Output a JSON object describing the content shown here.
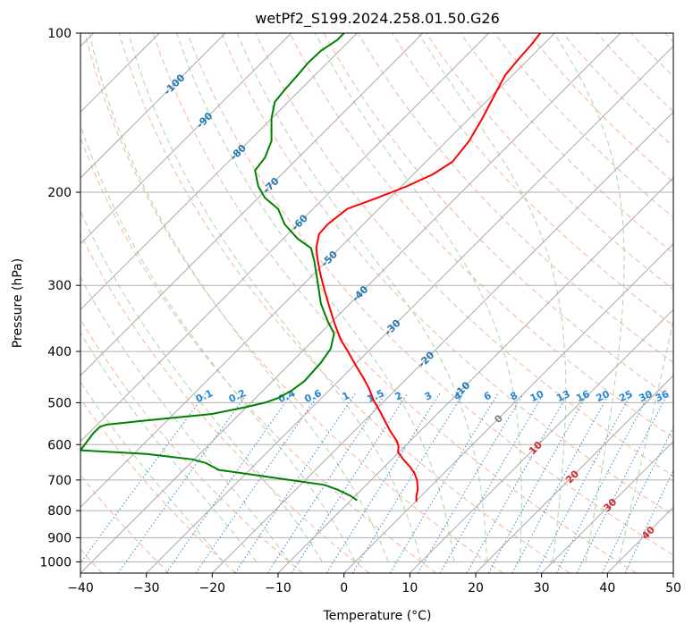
{
  "chart_data": {
    "type": "line",
    "title": "wetPf2_S199.2024.258.01.50.G26",
    "xlabel": "Temperature (°C)",
    "ylabel": "Pressure (hPa)",
    "xlim": [
      -40,
      50
    ],
    "ylim": [
      1050,
      100
    ],
    "y_scale": "log",
    "grid": true,
    "x_ticks": [
      -40,
      -30,
      -20,
      -10,
      0,
      10,
      20,
      30,
      40,
      50
    ],
    "y_ticks": [
      100,
      200,
      300,
      400,
      500,
      600,
      700,
      800,
      900,
      1000
    ],
    "isotherm_labels": [
      {
        "text": "-100",
        "t": -100,
        "p": 125
      },
      {
        "text": "-90",
        "t": -90,
        "p": 146
      },
      {
        "text": "-80",
        "t": -80,
        "p": 168
      },
      {
        "text": "-70",
        "t": -70,
        "p": 194
      },
      {
        "text": "-60",
        "t": -60,
        "p": 228
      },
      {
        "text": "-50",
        "t": -50,
        "p": 267
      },
      {
        "text": "-40",
        "t": -40,
        "p": 311
      },
      {
        "text": "-30",
        "t": -30,
        "p": 360
      },
      {
        "text": "-20",
        "t": -20,
        "p": 414
      },
      {
        "text": "-10",
        "t": -10,
        "p": 472
      },
      {
        "text": "0",
        "t": 0,
        "p": 536
      },
      {
        "text": "10",
        "t": 10,
        "p": 608
      },
      {
        "text": "20",
        "t": 20,
        "p": 690
      },
      {
        "text": "30",
        "t": 30,
        "p": 780
      },
      {
        "text": "40",
        "t": 40,
        "p": 880
      }
    ],
    "mixing_ratio_labels": [
      "0.1",
      "0.2",
      "0.4",
      "0.6",
      "1",
      "1.5",
      "2",
      "3",
      "4",
      "6",
      "8",
      "10",
      "13",
      "16",
      "20",
      "25",
      "30",
      "36"
    ],
    "mixing_ratio_label_x": [
      -21,
      -16,
      -8.5,
      -4.5,
      0.5,
      5,
      8.5,
      13,
      17.5,
      22,
      26,
      29.5,
      33.5,
      36.5,
      39.5,
      43,
      46,
      48.5
    ],
    "series": [
      {
        "name": "",
        "color": "#ff0000",
        "t": [
          11,
          11,
          11.2,
          11.1,
          10.7,
          10,
          9,
          8.2,
          8.3,
          8,
          7,
          6.5,
          5.5,
          4.5,
          3.8,
          3,
          1.8,
          0.6,
          -0.5,
          -1.4,
          -2.2,
          -3,
          -3.6,
          -4,
          -4.2,
          -3.8,
          -2.5,
          0.5,
          5,
          9.5,
          13.5,
          16.5,
          19,
          21,
          23,
          24.5,
          26.5,
          28.5,
          29.8
        ],
        "p": [
          770,
          750,
          730,
          700,
          680,
          660,
          640,
          620,
          605,
          590,
          565,
          550,
          520,
          495,
          470,
          450,
          425,
          400,
          380,
          355,
          330,
          305,
          285,
          268,
          255,
          240,
          230,
          215,
          205,
          195,
          185,
          175,
          160,
          145,
          130,
          120,
          112,
          105,
          100
        ]
      },
      {
        "name": "",
        "color": "#008000",
        "t": [
          2,
          1,
          -1,
          -3,
          -10,
          -19,
          -21,
          -23,
          -30,
          -40,
          -38,
          -37,
          -36,
          -30,
          -20,
          -15,
          -12,
          -10,
          -8,
          -6,
          -3.5,
          -2,
          -1.5,
          -2.5,
          -3.5,
          -4,
          -4.5,
          -5,
          -7,
          -9,
          -10,
          -12,
          -13,
          -13.5,
          -12,
          -11,
          -11,
          -10.5,
          -9,
          -7,
          -5.5,
          -3.5,
          -1,
          0
        ],
        "p": [
          765,
          750,
          730,
          715,
          695,
          670,
          650,
          640,
          625,
          615,
          570,
          555,
          550,
          540,
          525,
          510,
          500,
          490,
          475,
          455,
          420,
          395,
          370,
          350,
          325,
          295,
          270,
          255,
          245,
          230,
          215,
          205,
          195,
          182,
          172,
          160,
          145,
          135,
          128,
          120,
          114,
          108,
          103,
          100
        ]
      }
    ]
  }
}
